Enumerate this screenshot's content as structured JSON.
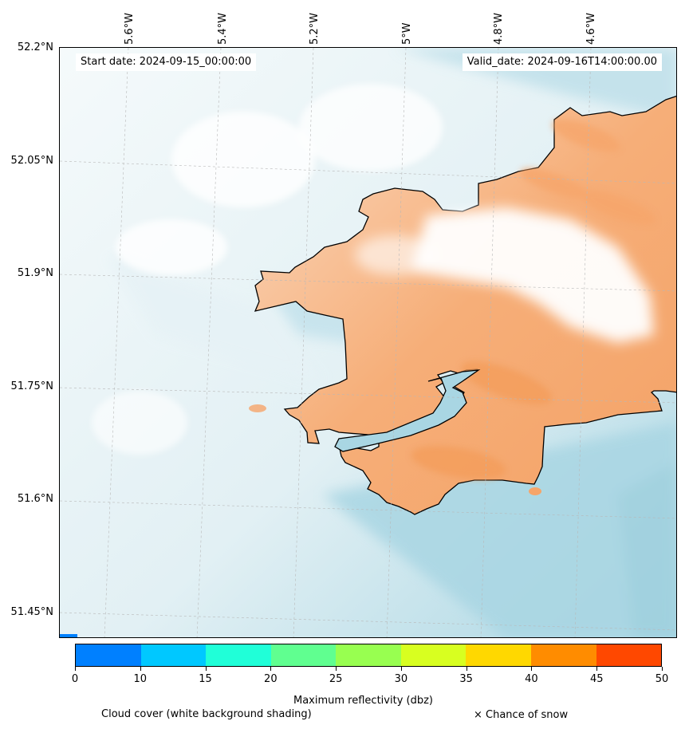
{
  "header": {
    "start_date": "Start date: 2024-09-15_00:00:00",
    "valid_date": "Valid_date: 2024-09-16T14:00:00.00"
  },
  "axes": {
    "longitude_labels": [
      "5.6°W",
      "5.4°W",
      "5.2°W",
      "5°W",
      "4.8°W",
      "4.6°W"
    ],
    "latitude_labels": [
      "52.2°N",
      "52.05°N",
      "51.9°N",
      "51.75°N",
      "51.6°N",
      "51.45°N"
    ]
  },
  "colorbar": {
    "label": "Maximum reflectivity (dbz)",
    "ticks": [
      "0",
      "10",
      "15",
      "20",
      "25",
      "30",
      "35",
      "40",
      "45",
      "50"
    ],
    "colors": [
      "#0080ff",
      "#00c8ff",
      "#20ffd8",
      "#60ff90",
      "#98ff50",
      "#d8ff20",
      "#ffd800",
      "#ff8c00",
      "#ff4800"
    ]
  },
  "legend": {
    "cloud_cover": "Cloud cover (white background shading)",
    "snow": "× Chance of snow"
  },
  "colors": {
    "cloud_blue": "#a9d6e3",
    "land_orange": "#f6a56a",
    "coastline": "#000000"
  }
}
